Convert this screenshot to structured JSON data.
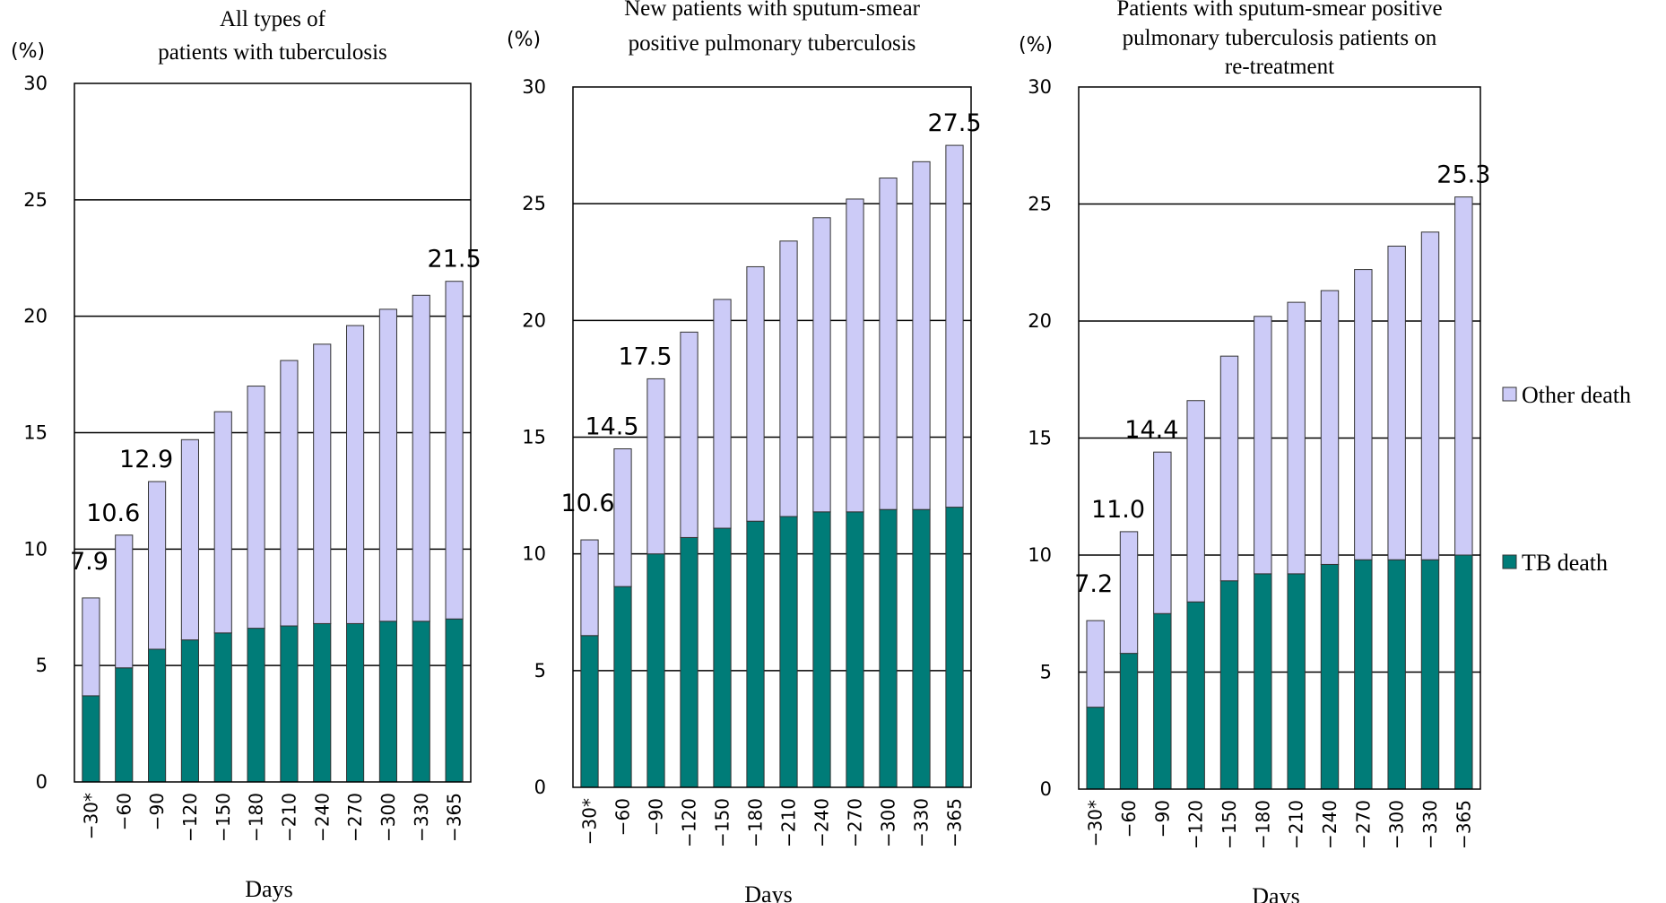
{
  "colors": {
    "tb_death": "#007c78",
    "other_death": "#cccbf7",
    "bar_stroke": "#333333",
    "axis": "#000000"
  },
  "legend": {
    "other_death": "Other death",
    "tb_death": "TB death"
  },
  "chart_data": [
    {
      "type": "bar",
      "stacked": true,
      "title": [
        "All types of",
        "patients with tuberculosis"
      ],
      "unit_label": "(%)",
      "xlabel": "Days",
      "ylabel": "",
      "ylim": [
        0,
        30
      ],
      "yticks": [
        0,
        5,
        10,
        15,
        20,
        25,
        30
      ],
      "categories": [
        "−30*",
        "−60",
        "−90",
        "−120",
        "−150",
        "−180",
        "−210",
        "−240",
        "−270",
        "−300",
        "−330",
        "−365"
      ],
      "series": [
        {
          "name": "TB death",
          "values": [
            3.7,
            4.9,
            5.7,
            6.1,
            6.4,
            6.6,
            6.7,
            6.8,
            6.8,
            6.9,
            6.9,
            7.0
          ]
        },
        {
          "name": "Other death",
          "values": [
            4.2,
            5.7,
            7.2,
            8.6,
            9.5,
            10.4,
            11.4,
            12.0,
            12.8,
            13.4,
            14.0,
            14.5
          ]
        }
      ],
      "totals": [
        7.9,
        10.6,
        12.9,
        14.7,
        15.9,
        17.0,
        18.1,
        18.8,
        19.6,
        20.3,
        20.9,
        21.5
      ],
      "data_labels": [
        {
          "index": 0,
          "text": "7.9"
        },
        {
          "index": 1,
          "text": "10.6"
        },
        {
          "index": 2,
          "text": "12.9"
        },
        {
          "index": 11,
          "text": "21.5"
        }
      ],
      "grid": true
    },
    {
      "type": "bar",
      "stacked": true,
      "title": [
        "New patients with sputum-smear",
        "positive pulmonary tuberculosis"
      ],
      "unit_label": "(%)",
      "xlabel": "Days",
      "ylabel": "",
      "ylim": [
        0,
        30
      ],
      "yticks": [
        0,
        5,
        10,
        15,
        20,
        25,
        30
      ],
      "categories": [
        "−30*",
        "−60",
        "−90",
        "−120",
        "−150",
        "−180",
        "−210",
        "−240",
        "−270",
        "−300",
        "−330",
        "−365"
      ],
      "series": [
        {
          "name": "TB death",
          "values": [
            6.5,
            8.6,
            10.0,
            10.7,
            11.1,
            11.4,
            11.6,
            11.8,
            11.8,
            11.9,
            11.9,
            12.0
          ]
        },
        {
          "name": "Other death",
          "values": [
            4.1,
            5.9,
            7.5,
            8.8,
            9.8,
            10.9,
            11.8,
            12.6,
            13.4,
            14.2,
            14.9,
            15.5
          ]
        }
      ],
      "totals": [
        10.6,
        14.5,
        17.5,
        19.5,
        20.9,
        22.3,
        23.4,
        24.4,
        25.2,
        26.1,
        26.8,
        27.5
      ],
      "data_labels": [
        {
          "index": 0,
          "text": "10.6"
        },
        {
          "index": 1,
          "text": "14.5"
        },
        {
          "index": 2,
          "text": "17.5"
        },
        {
          "index": 11,
          "text": "27.5"
        }
      ],
      "grid": true
    },
    {
      "type": "bar",
      "stacked": true,
      "title": [
        "Patients with sputum-smear positive",
        "pulmonary tuberculosis patients on",
        "re-treatment"
      ],
      "unit_label": "(%)",
      "xlabel": "Days",
      "ylabel": "",
      "ylim": [
        0,
        30
      ],
      "yticks": [
        0,
        5,
        10,
        15,
        20,
        25,
        30
      ],
      "categories": [
        "−30*",
        "−60",
        "−90",
        "−120",
        "−150",
        "−180",
        "−210",
        "−240",
        "−270",
        "−300",
        "−330",
        "−365"
      ],
      "series": [
        {
          "name": "TB death",
          "values": [
            3.5,
            5.8,
            7.5,
            8.0,
            8.9,
            9.2,
            9.2,
            9.6,
            9.8,
            9.8,
            9.8,
            10.0
          ]
        },
        {
          "name": "Other death",
          "values": [
            3.7,
            5.2,
            6.9,
            8.6,
            9.6,
            11.0,
            11.6,
            11.7,
            12.4,
            13.4,
            14.0,
            15.3
          ]
        }
      ],
      "totals": [
        7.2,
        11.0,
        14.4,
        16.6,
        18.5,
        20.2,
        20.8,
        21.3,
        22.2,
        23.2,
        23.8,
        25.3
      ],
      "data_labels": [
        {
          "index": 0,
          "text": "7.2"
        },
        {
          "index": 1,
          "text": "11.0"
        },
        {
          "index": 2,
          "text": "14.4"
        },
        {
          "index": 11,
          "text": "25.3"
        }
      ],
      "grid": true
    }
  ]
}
